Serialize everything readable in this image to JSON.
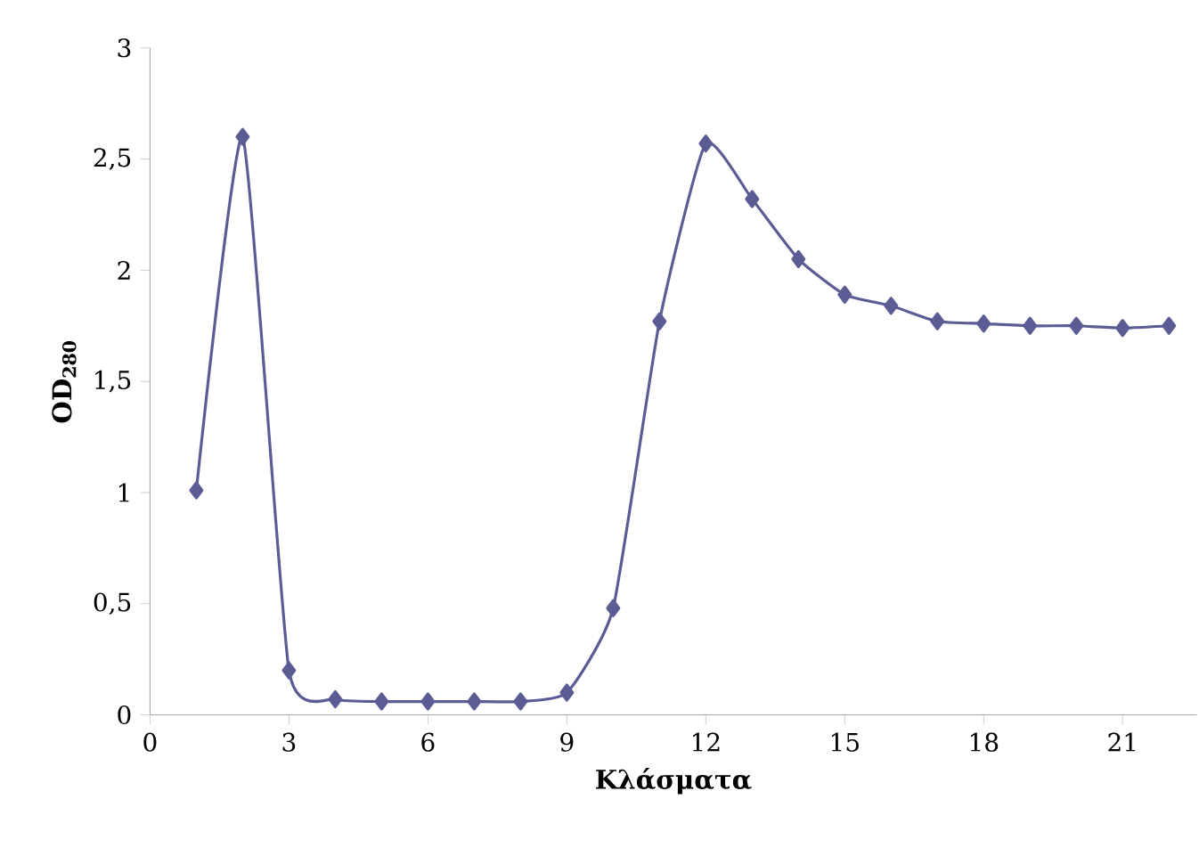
{
  "chart_data": {
    "type": "line",
    "xlabel": "Κλάσματα",
    "ylabel": "OD$_{280}$",
    "x": [
      1,
      2,
      3,
      4,
      5,
      6,
      7,
      8,
      9,
      10,
      11,
      12,
      13,
      14,
      15,
      16,
      17,
      18,
      19,
      20,
      21,
      22
    ],
    "series": [
      {
        "color": "#5c5c94",
        "values": [
          1.01,
          2.6,
          0.2,
          0.07,
          0.06,
          0.06,
          0.06,
          0.06,
          0.1,
          0.48,
          1.77,
          2.57,
          2.32,
          2.05,
          1.89,
          1.84,
          1.77,
          1.76,
          1.75,
          1.75,
          1.74,
          1.75
        ]
      }
    ],
    "xlim": [
      0,
      22.6
    ],
    "xticks": [
      0,
      3,
      6,
      9,
      12,
      15,
      18,
      21
    ],
    "ylim": [
      0,
      3
    ],
    "yticks": [
      0,
      {
        "value": 0.5,
        "label": "0,5"
      },
      1,
      {
        "value": 1.5,
        "label": "1,5"
      },
      2,
      {
        "value": 2.5,
        "label": "2,5"
      },
      3
    ],
    "marker": "diamond",
    "line_style": "solid",
    "grid": false
  }
}
